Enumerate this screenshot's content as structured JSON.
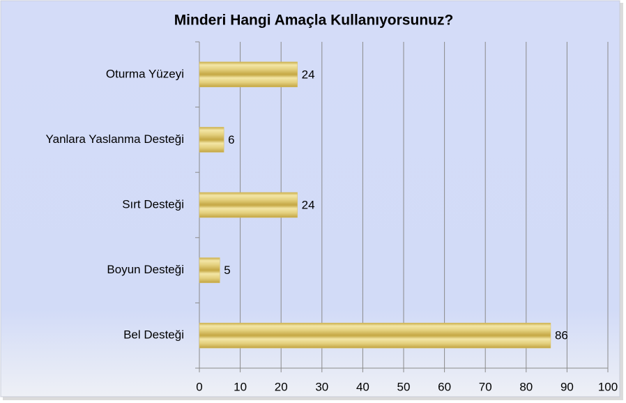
{
  "chart_data": {
    "type": "bar",
    "orientation": "horizontal",
    "title": "Minderi Hangi Amaçla Kullanıyorsunuz?",
    "categories": [
      "Oturma Yüzeyi",
      "Yanlara Yaslanma Desteği",
      "Sırt Desteği",
      "Boyun Desteği",
      "Bel Desteği"
    ],
    "values": [
      24,
      6,
      24,
      5,
      86
    ],
    "color": "#d8c060",
    "xlim": [
      0,
      100
    ],
    "xticks": [
      0,
      10,
      20,
      30,
      40,
      50,
      60,
      70,
      80,
      90,
      100
    ],
    "grid": true
  }
}
